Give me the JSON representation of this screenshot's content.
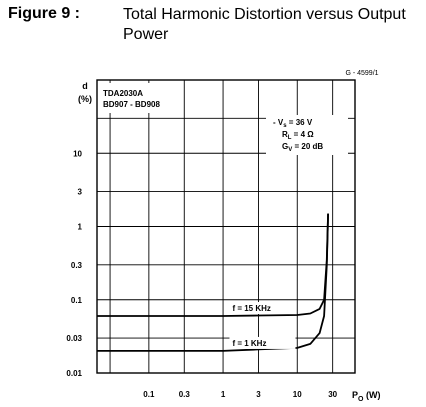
{
  "figure": {
    "label": "Figure 9 :",
    "title": "Total Harmonic Distortion versus Output Power"
  },
  "doc_code": "G - 4599/1",
  "colors": {
    "ink": "#000000",
    "paper": "#ffffff"
  },
  "chart_data": {
    "type": "line",
    "title": "",
    "ylabel_lines": [
      "d",
      "(%)"
    ],
    "xlabel": "P",
    "xlabel_sub": "O",
    "xlabel_unit": " (W)",
    "x_scale": "log",
    "y_scale": "log",
    "xlim": [
      0.02,
      60
    ],
    "ylim": [
      0.01,
      100
    ],
    "x_tick_values": [
      0.1,
      0.3,
      1,
      3,
      10,
      30
    ],
    "x_tick_labels": [
      "0.1",
      "0.3",
      "1",
      "3",
      "10",
      "30"
    ],
    "y_tick_values": [
      0.01,
      0.03,
      0.1,
      0.3,
      1,
      3,
      10
    ],
    "y_tick_labels": [
      "0.01",
      "0.03",
      "0.1",
      "0.3",
      "1",
      "3",
      "10"
    ],
    "grid": true,
    "device_lines": [
      "TDA2030A",
      "BD907 - BD908"
    ],
    "conditions": [
      {
        "pre": "- V",
        "sub": "s",
        "post": " = 36 V"
      },
      {
        "pre": "R",
        "sub": "L",
        "post": " = 4 Ω"
      },
      {
        "pre": "G",
        "sub": "V",
        "post": " = 20 dB"
      }
    ],
    "series": [
      {
        "name": "f = 15 KHz",
        "x": [
          0.02,
          0.1,
          0.3,
          1,
          3,
          10,
          15,
          20,
          23,
          25,
          26
        ],
        "y": [
          0.06,
          0.06,
          0.06,
          0.06,
          0.061,
          0.062,
          0.065,
          0.075,
          0.1,
          0.35,
          1.5
        ]
      },
      {
        "name": "f = 1 KHz",
        "x": [
          0.02,
          0.1,
          0.3,
          1,
          3,
          10,
          15,
          20,
          23,
          25,
          26
        ],
        "y": [
          0.02,
          0.02,
          0.02,
          0.02,
          0.021,
          0.022,
          0.025,
          0.035,
          0.06,
          0.3,
          1.5
        ]
      }
    ]
  }
}
